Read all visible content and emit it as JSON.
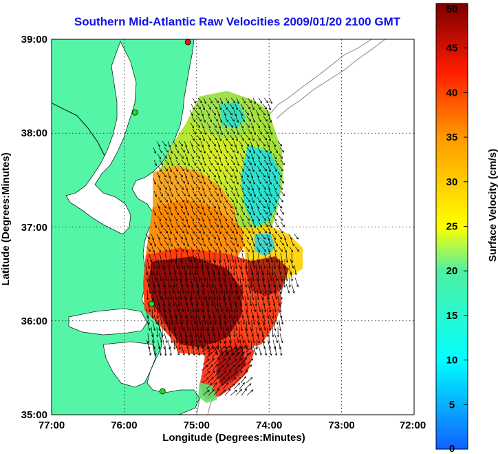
{
  "title": "Southern Mid-Atlantic Raw Velocities 2009/01/20 2100 GMT",
  "axes": {
    "xlabel": "Longitude (Degrees:Minutes)",
    "ylabel": "Latitude (Degrees:Minutes)",
    "x_ticks": [
      "77:00",
      "76:00",
      "75:00",
      "74:00",
      "73:00",
      "72:00"
    ],
    "y_ticks": [
      "39:00",
      "38:00",
      "37:00",
      "36:00",
      "35:00"
    ],
    "xlim": [
      -77,
      -72
    ],
    "ylim": [
      35,
      39
    ]
  },
  "colorbar": {
    "label": "Surface Velocity (cm/s)",
    "ticks": [
      "50",
      "45",
      "40",
      "35",
      "30",
      "25",
      "20",
      "15",
      "10",
      "5",
      "0"
    ],
    "range": [
      0,
      50
    ]
  },
  "colors": {
    "land": "#55f5a8",
    "title": "#1010e8",
    "grid": "#000000",
    "bathymetry": "#9a9a9a",
    "station_markers": "#22dd22",
    "station_marker_red": "#ee1111"
  },
  "stations": [
    {
      "lon": -75.12,
      "lat": 38.97,
      "color": "red"
    },
    {
      "lon": -75.85,
      "lat": 38.22,
      "color": "green"
    },
    {
      "lon": -75.62,
      "lat": 36.18,
      "color": "green"
    },
    {
      "lon": -75.47,
      "lat": 35.25,
      "color": "green"
    }
  ]
}
